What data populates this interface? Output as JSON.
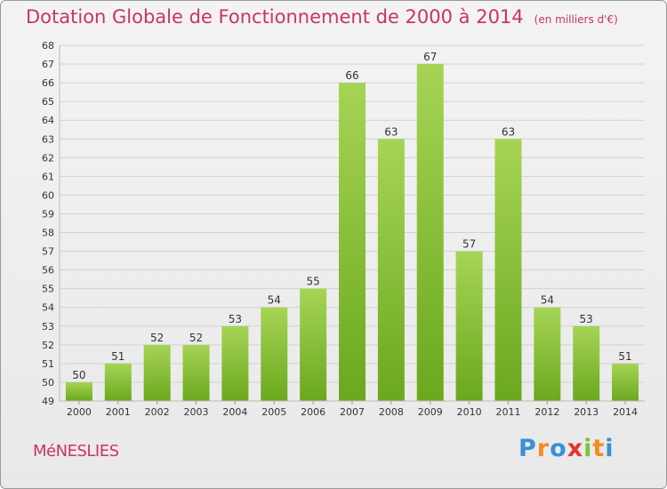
{
  "chart_data": {
    "type": "bar",
    "title": "Dotation Globale de Fonctionnement de 2000 à 2014",
    "unit_note": "(en milliers d'€)",
    "categories": [
      "2000",
      "2001",
      "2002",
      "2003",
      "2004",
      "2005",
      "2006",
      "2007",
      "2008",
      "2009",
      "2010",
      "2011",
      "2012",
      "2013",
      "2014"
    ],
    "values": [
      50,
      51,
      52,
      52,
      53,
      54,
      55,
      66,
      63,
      67,
      57,
      63,
      54,
      53,
      51
    ],
    "xlabel": "",
    "ylabel": "",
    "ylim": [
      49,
      68
    ],
    "yticks": [
      49,
      50,
      51,
      52,
      53,
      54,
      55,
      56,
      57,
      58,
      59,
      60,
      61,
      62,
      63,
      64,
      65,
      66,
      67,
      68
    ],
    "grid": true,
    "bar_color_light": "#a6d455",
    "bar_color_dark": "#6aa81e"
  },
  "commune": "MéNESLIES",
  "logo": {
    "letters": [
      "P",
      "r",
      "o",
      "x",
      "i",
      "t",
      "i"
    ],
    "colors": [
      "#3a8fd6",
      "#f28c1e",
      "#3a8fd6",
      "#e3342f",
      "#7cc242",
      "#f28c1e",
      "#3a8fd6"
    ]
  },
  "colors": {
    "title": "#c8365f",
    "grid": "#d2d2d2",
    "axis_text": "#333333"
  }
}
